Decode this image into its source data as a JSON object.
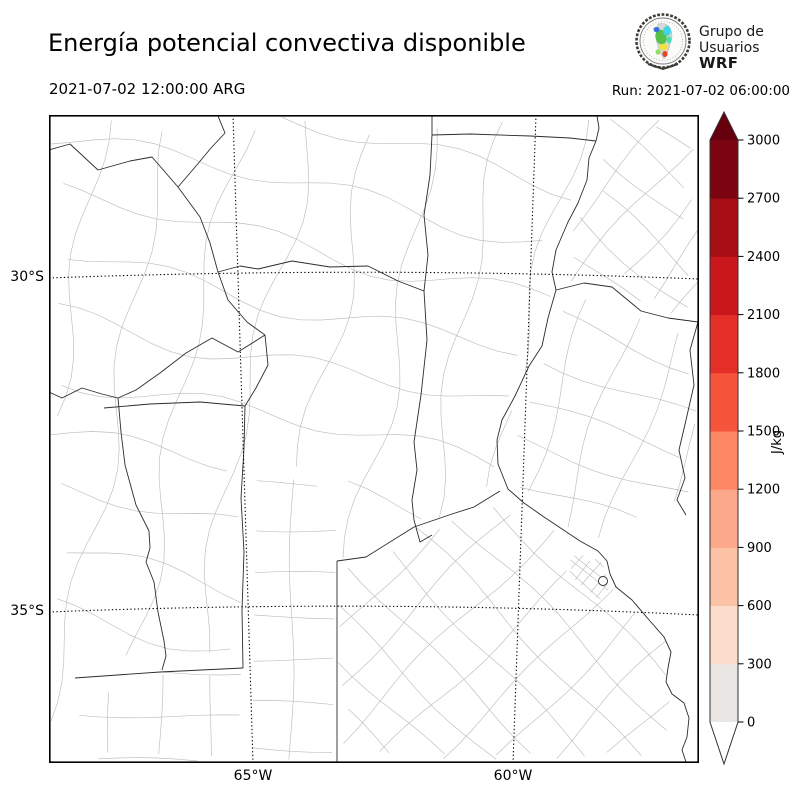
{
  "header": {
    "title": "Energía potencial convectiva disponible",
    "valid_time": "2021-07-02 12:00:00 ARG",
    "run_label": "Run: 2021-07-02 06:00:00",
    "logo": {
      "line1": "Grupo de",
      "line2": "Usuarios",
      "line3": "WRF"
    }
  },
  "map_axes": {
    "y_ticks": [
      "30°S",
      "35°S"
    ],
    "x_ticks": [
      "65°W",
      "60°W"
    ]
  },
  "colorbar": {
    "unit": "J/kg",
    "tick_values": [
      0,
      300,
      600,
      900,
      1200,
      1500,
      1800,
      2100,
      2400,
      2700,
      3000
    ],
    "segment_colors_bottom_to_top": [
      "#e9e6e3",
      "#fdddcb",
      "#fcc2a6",
      "#fca98b",
      "#fc8765",
      "#f6553c",
      "#e32f27",
      "#c9171c",
      "#a80f15",
      "#7a0510"
    ],
    "over_color": "#67000d",
    "under_color": "#ffffff"
  },
  "chart_data": {
    "type": "heatmap",
    "title": "Energía potencial convectiva disponible",
    "units": "J/kg",
    "levels": [
      0,
      300,
      600,
      900,
      1200,
      1500,
      1800,
      2100,
      2400,
      2700,
      3000
    ],
    "x_tick_labels": [
      "65°W",
      "60°W"
    ],
    "y_tick_labels": [
      "30°S",
      "35°S"
    ],
    "values_visible": "entire domain blank/white (CAPE at or below lowest level)",
    "legend_position": "right colorbar, vertical, with extend arrows"
  }
}
